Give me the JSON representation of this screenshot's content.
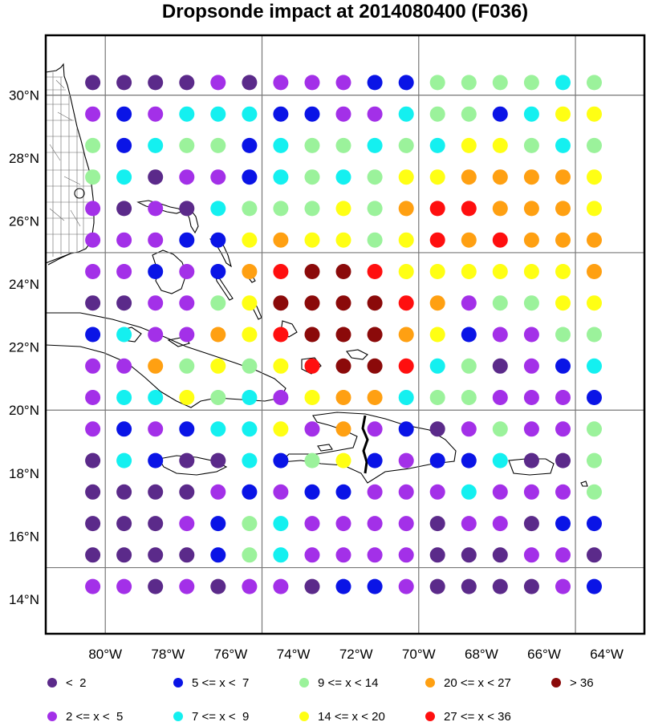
{
  "title": "Dropsonde impact at 2014080400 (F036)",
  "chart_data": {
    "type": "scatter",
    "x_label_ticks": [
      "80°W",
      "78°W",
      "76°W",
      "74°W",
      "72°W",
      "70°W",
      "68°W",
      "66°W",
      "64°W"
    ],
    "y_label_ticks": [
      "14°N",
      "16°N",
      "18°N",
      "20°N",
      "22°N",
      "24°N",
      "26°N",
      "28°N",
      "30°N"
    ],
    "xlim": [
      -81.9,
      -62.8
    ],
    "ylim": [
      12.9,
      31.9
    ],
    "grid_lines_lon": [
      -80,
      -75,
      -70,
      -65
    ],
    "grid_lines_lat": [
      15,
      20,
      25,
      30
    ],
    "lons": [
      -80.4,
      -79.4,
      -78.4,
      -77.4,
      -76.4,
      -75.4,
      -74.4,
      -73.4,
      -72.4,
      -71.4,
      -70.4,
      -69.4,
      -68.4,
      -67.4,
      -66.4,
      -65.4,
      -64.4
    ],
    "lats": [
      30.4,
      29.4,
      28.4,
      27.4,
      26.4,
      25.4,
      24.4,
      23.4,
      22.4,
      21.4,
      20.4,
      19.4,
      18.4,
      17.4,
      16.4,
      15.4,
      14.4
    ],
    "categories": [
      {
        "code": "A",
        "label": "<  2",
        "color": "#5b2a8a"
      },
      {
        "code": "B",
        "label": "2 <= x <  5",
        "color": "#a330e8"
      },
      {
        "code": "C",
        "label": "5 <= x <  7",
        "color": "#0a14e6"
      },
      {
        "code": "D",
        "label": "7 <= x <  9",
        "color": "#14f0f0"
      },
      {
        "code": "E",
        "label": "9 <= x < 14",
        "color": "#9bf29b"
      },
      {
        "code": "F",
        "label": "14 <= x < 20",
        "color": "#ffff14"
      },
      {
        "code": "G",
        "label": "20 <= x < 27",
        "color": "#ffa012"
      },
      {
        "code": "H",
        "label": "27 <= x < 36",
        "color": "#ff0f0f"
      },
      {
        "code": "I",
        "label": "> 36",
        "color": "#8b0a0a"
      }
    ],
    "grid_values": [
      "AAAABABBBCCEEEEDE",
      "BCBDDDCCBBDEECDFF",
      "ECDEECDEEDEDFFEDE",
      "EDABBCDEDEFFGGGGF",
      "BABADEEEFEGHHGGGF",
      "BBBCCFGFFEFHGHGGG",
      "BBCBCGHIIHFFFFFFG",
      "AABBEFIIIIHGBEEFF",
      "CDBBGFHIIIGFCBBEE",
      "BBGEFEFHIIHDEABCD",
      "BDDFEDBFGGDEEBBBC",
      "BCBCDDFBGBCABEBBE",
      "ADCAADCEFCBCCDAAE",
      "AAAABCBCCBBBDBBBE",
      "AAABCEDBBBBABBACC",
      "AAAACEDBBBBAAABBA",
      "BBABABBACCBAAAABC"
    ]
  },
  "legend": {
    "row1": [
      {
        "code": "A",
        "text": "<  2"
      },
      {
        "code": "C",
        "text": "5 <= x <  7"
      },
      {
        "code": "E",
        "text": "9 <= x < 14"
      },
      {
        "code": "G",
        "text": "20 <= x < 27"
      },
      {
        "code": "I",
        "text": "> 36"
      }
    ],
    "row2": [
      {
        "code": "B",
        "text": "2 <= x <  5"
      },
      {
        "code": "D",
        "text": "7 <= x <  9"
      },
      {
        "code": "F",
        "text": "14 <= x < 20"
      },
      {
        "code": "H",
        "text": "27 <= x < 36"
      }
    ]
  }
}
